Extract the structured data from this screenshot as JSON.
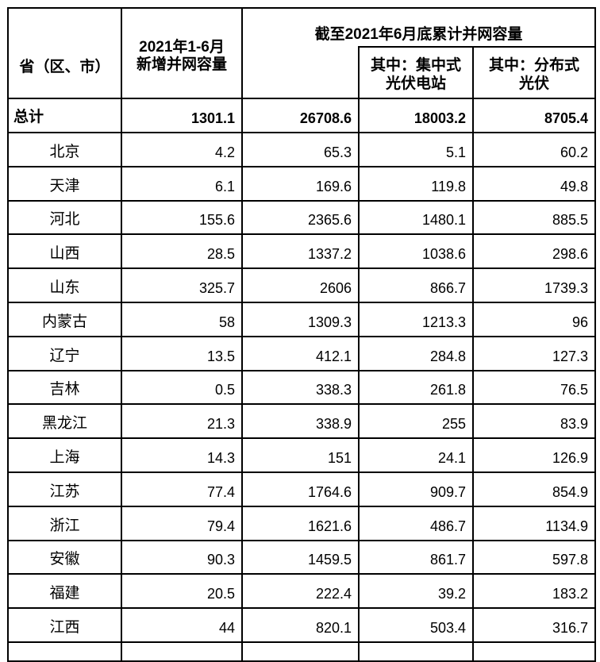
{
  "colors": {
    "border": "#000000",
    "text": "#000000",
    "background": "#ffffff"
  },
  "chart_data": {
    "type": "table",
    "header": {
      "province": "省（区、市）",
      "new_capacity": [
        "2021年1-6月",
        "新增并网容量"
      ],
      "cumulative_span": "截至2021年6月底累计并网容量",
      "centralized": [
        "其中：集中式",
        "光伏电站"
      ],
      "distributed": [
        "其中：分布式",
        "光伏"
      ]
    },
    "columns": [
      "省（区、市）",
      "2021年1-6月新增并网容量",
      "截至2021年6月底累计并网容量",
      "其中：集中式光伏电站",
      "其中：分布式光伏"
    ],
    "total": {
      "label": "总计",
      "values": [
        1301.1,
        26708.6,
        18003.2,
        8705.4
      ]
    },
    "rows": [
      {
        "province": "北京",
        "values": [
          4.2,
          65.3,
          5.1,
          60.2
        ]
      },
      {
        "province": "天津",
        "values": [
          6.1,
          169.6,
          119.8,
          49.8
        ]
      },
      {
        "province": "河北",
        "values": [
          155.6,
          2365.6,
          1480.1,
          885.5
        ]
      },
      {
        "province": "山西",
        "values": [
          28.5,
          1337.2,
          1038.6,
          298.6
        ]
      },
      {
        "province": "山东",
        "values": [
          325.7,
          2606,
          866.7,
          1739.3
        ]
      },
      {
        "province": "内蒙古",
        "values": [
          58,
          1309.3,
          1213.3,
          96
        ]
      },
      {
        "province": "辽宁",
        "values": [
          13.5,
          412.1,
          284.8,
          127.3
        ]
      },
      {
        "province": "吉林",
        "values": [
          0.5,
          338.3,
          261.8,
          76.5
        ]
      },
      {
        "province": "黑龙江",
        "values": [
          21.3,
          338.9,
          255,
          83.9
        ]
      },
      {
        "province": "上海",
        "values": [
          14.3,
          151,
          24.1,
          126.9
        ]
      },
      {
        "province": "江苏",
        "values": [
          77.4,
          1764.6,
          909.7,
          854.9
        ]
      },
      {
        "province": "浙江",
        "values": [
          79.4,
          1621.6,
          486.7,
          1134.9
        ]
      },
      {
        "province": "安徽",
        "values": [
          90.3,
          1459.5,
          861.7,
          597.8
        ]
      },
      {
        "province": "福建",
        "values": [
          20.5,
          222.4,
          39.2,
          183.2
        ]
      },
      {
        "province": "江西",
        "values": [
          44,
          820.1,
          503.4,
          316.7
        ]
      }
    ]
  }
}
